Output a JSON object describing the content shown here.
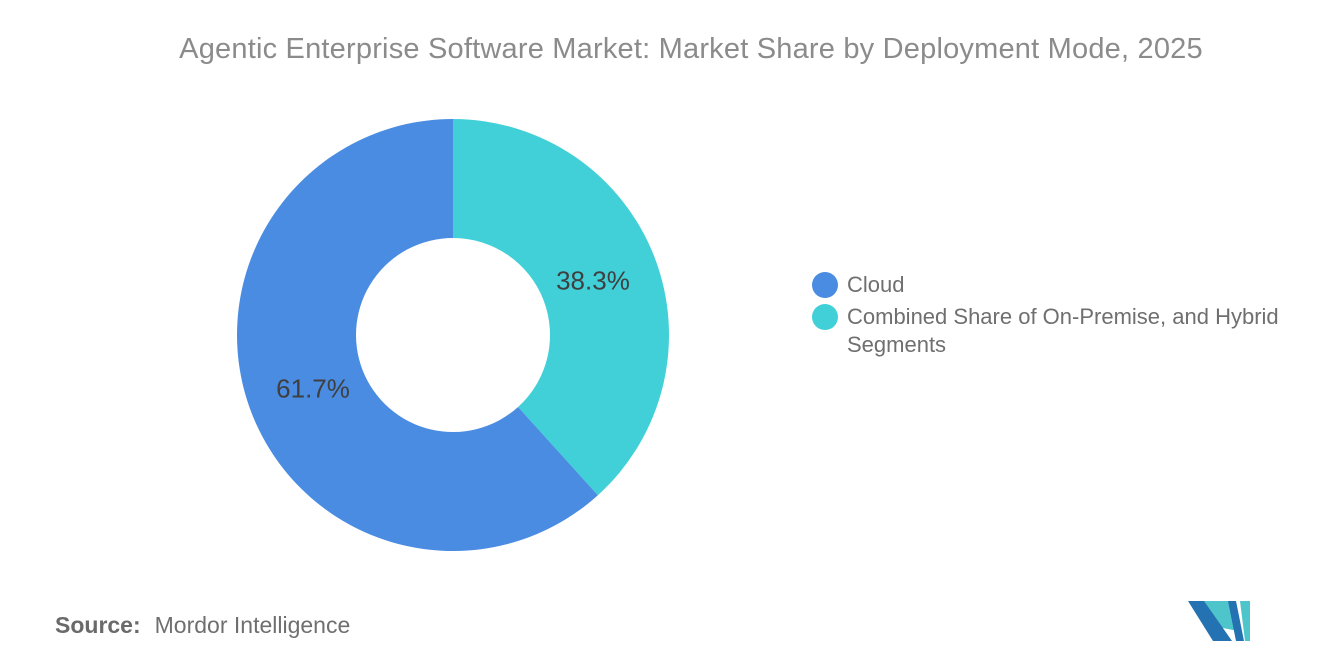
{
  "title": "Agentic Enterprise Software Market: Market Share by Deployment Mode, 2025",
  "chart_data": {
    "type": "pie",
    "subtype": "donut",
    "title": "Agentic Enterprise Software Market: Market Share by Deployment Mode, 2025",
    "donut_hole_ratio": 0.45,
    "start": "top",
    "direction": "clockwise",
    "slices": [
      {
        "name": "Combined Share of On-Premise, and Hybrid Segments",
        "value": 38.3,
        "data_label": "38.3%",
        "color": "#41d0d8"
      },
      {
        "name": "Cloud",
        "value": 61.7,
        "data_label": "61.7%",
        "color": "#4a8ce2"
      }
    ],
    "legend_position": "right"
  },
  "legend": {
    "items": [
      {
        "label": "Cloud",
        "color": "#4a8ce2"
      },
      {
        "label": "Combined Share of On-Premise, and Hybrid Segments",
        "color": "#41d0d8"
      }
    ]
  },
  "source": {
    "prefix": "Source:",
    "name": "Mordor Intelligence"
  },
  "logo": {
    "name": "Mordor Intelligence logo",
    "blue": "#2472b2",
    "teal": "#4ec5ca"
  }
}
